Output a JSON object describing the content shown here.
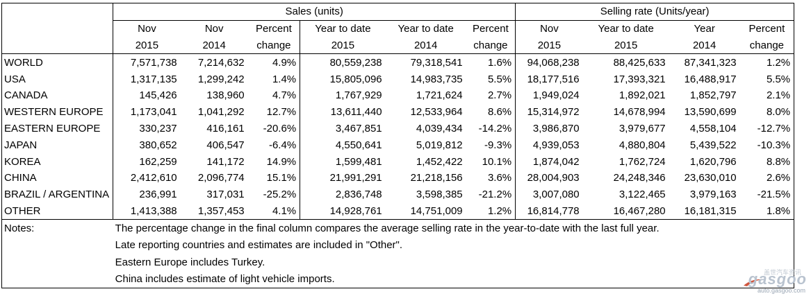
{
  "header": {
    "sales_group": "Sales (units)",
    "rate_group": "Selling rate (Units/year)",
    "columns": [
      {
        "line1": "Nov",
        "line2": "2015"
      },
      {
        "line1": "Nov",
        "line2": "2014"
      },
      {
        "line1": "Percent",
        "line2": "change"
      },
      {
        "line1": "Year to date",
        "line2": "2015"
      },
      {
        "line1": "Year to date",
        "line2": "2014"
      },
      {
        "line1": "Percent",
        "line2": "change"
      },
      {
        "line1": "Nov",
        "line2": "2015"
      },
      {
        "line1": "Year to date",
        "line2": "2015"
      },
      {
        "line1": "Year",
        "line2": "2014"
      },
      {
        "line1": "Percent",
        "line2": "change"
      }
    ]
  },
  "rows": [
    {
      "region": "WORLD",
      "values": [
        "7,571,738",
        "7,214,632",
        "4.9%",
        "80,559,238",
        "79,318,541",
        "1.6%",
        "94,068,238",
        "88,425,633",
        "87,341,323",
        "1.2%"
      ]
    },
    {
      "region": "USA",
      "values": [
        "1,317,135",
        "1,299,242",
        "1.4%",
        "15,805,096",
        "14,983,735",
        "5.5%",
        "18,177,516",
        "17,393,321",
        "16,488,917",
        "5.5%"
      ]
    },
    {
      "region": "CANADA",
      "values": [
        "145,426",
        "138,960",
        "4.7%",
        "1,767,929",
        "1,721,624",
        "2.7%",
        "1,949,024",
        "1,892,021",
        "1,852,797",
        "2.1%"
      ]
    },
    {
      "region": "WESTERN EUROPE",
      "values": [
        "1,173,041",
        "1,041,292",
        "12.7%",
        "13,611,440",
        "12,533,964",
        "8.6%",
        "15,314,972",
        "14,678,994",
        "13,590,699",
        "8.0%"
      ]
    },
    {
      "region": "EASTERN EUROPE",
      "values": [
        "330,237",
        "416,161",
        "-20.6%",
        "3,467,851",
        "4,039,434",
        "-14.2%",
        "3,986,870",
        "3,979,677",
        "4,558,104",
        "-12.7%"
      ]
    },
    {
      "region": "JAPAN",
      "values": [
        "380,652",
        "406,547",
        "-6.4%",
        "4,550,641",
        "5,019,812",
        "-9.3%",
        "4,939,053",
        "4,880,804",
        "5,439,522",
        "-10.3%"
      ]
    },
    {
      "region": "KOREA",
      "values": [
        "162,259",
        "141,172",
        "14.9%",
        "1,599,481",
        "1,452,422",
        "10.1%",
        "1,874,042",
        "1,762,724",
        "1,620,796",
        "8.8%"
      ]
    },
    {
      "region": "CHINA",
      "values": [
        "2,412,610",
        "2,096,774",
        "15.1%",
        "21,991,291",
        "21,218,156",
        "3.6%",
        "28,004,903",
        "24,248,346",
        "23,630,010",
        "2.6%"
      ]
    },
    {
      "region": "BRAZIL / ARGENTINA",
      "values": [
        "236,991",
        "317,031",
        "-25.2%",
        "2,836,748",
        "3,598,385",
        "-21.2%",
        "3,007,080",
        "3,122,465",
        "3,979,163",
        "-21.5%"
      ]
    },
    {
      "region": "OTHER",
      "values": [
        "1,413,388",
        "1,357,453",
        "4.1%",
        "14,928,761",
        "14,751,009",
        "1.2%",
        "16,814,778",
        "16,467,280",
        "16,181,315",
        "1.8%"
      ]
    }
  ],
  "notes": {
    "label": "Notes:",
    "lines": [
      "The percentage change in the final column compares the average selling rate in the year-to-date with the last full year.",
      "Late reporting countries and estimates are included in \"Other\".",
      "Eastern Europe includes Turkey.",
      "China includes estimate of light vehicle imports."
    ]
  },
  "watermark": {
    "brand": "gasgoo",
    "cn": "盖世汽车资讯",
    "url": "auto.gasgoo.com"
  }
}
